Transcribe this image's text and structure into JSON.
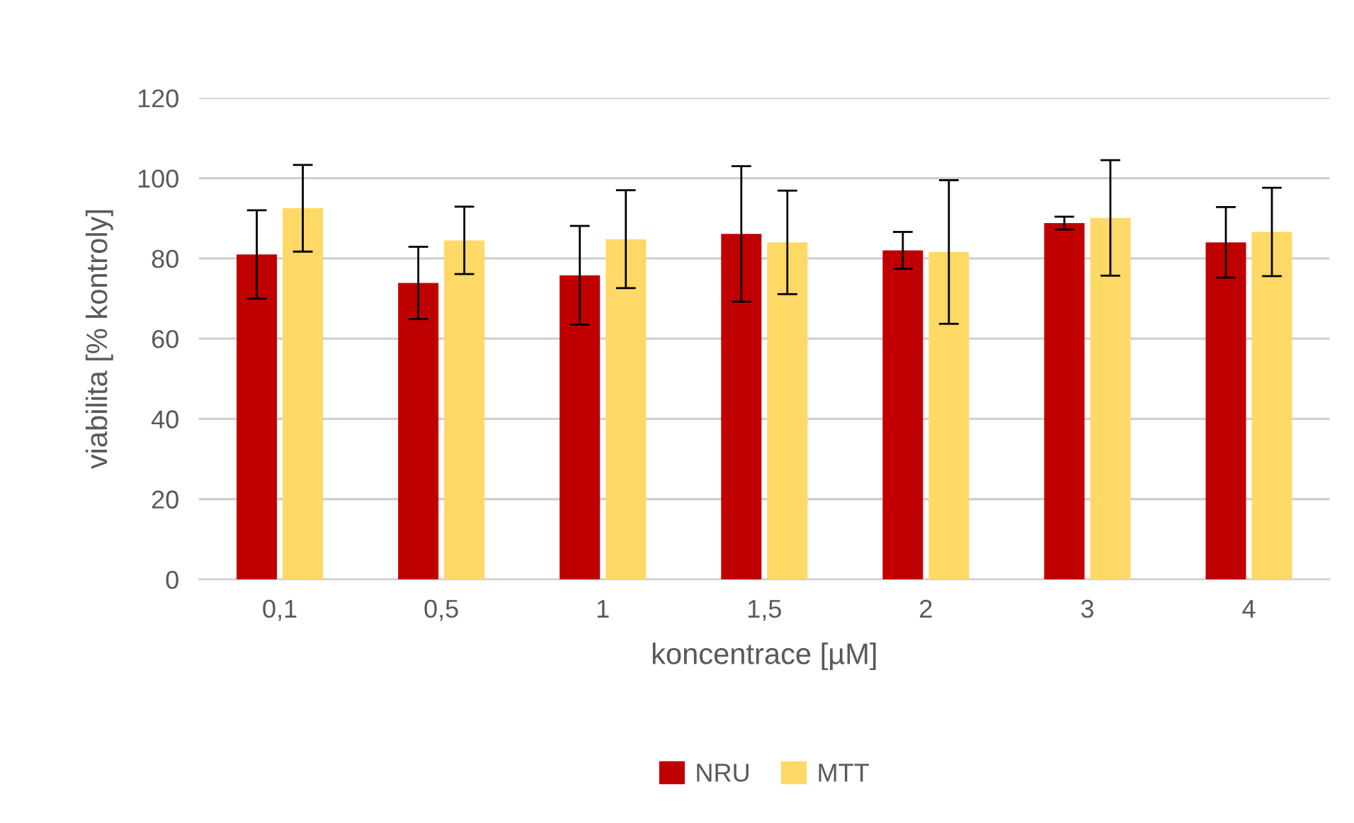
{
  "chart_data": {
    "type": "bar",
    "xlabel": "koncentrace [µM]",
    "ylabel": "viabilita [% kontroly]",
    "categories": [
      "0,1",
      "0,5",
      "1",
      "1,5",
      "2",
      "3",
      "4"
    ],
    "series": [
      {
        "name": "NRU",
        "color": "#c00000",
        "values": [
          81,
          73.9,
          75.8,
          86.1,
          82,
          88.8,
          84
        ],
        "errors": [
          11,
          9,
          12.3,
          16.9,
          4.6,
          1.6,
          8.8
        ]
      },
      {
        "name": "MTT",
        "color": "#ffd966",
        "values": [
          92.5,
          84.5,
          84.8,
          84,
          81.6,
          90.1,
          86.6
        ],
        "errors": [
          10.8,
          8.4,
          12.2,
          12.9,
          17.9,
          14.4,
          11
        ]
      }
    ],
    "ylim": [
      0,
      120
    ],
    "yticks": [
      0,
      20,
      40,
      60,
      80,
      100,
      120
    ],
    "grid": "y",
    "legend": "bottom"
  }
}
